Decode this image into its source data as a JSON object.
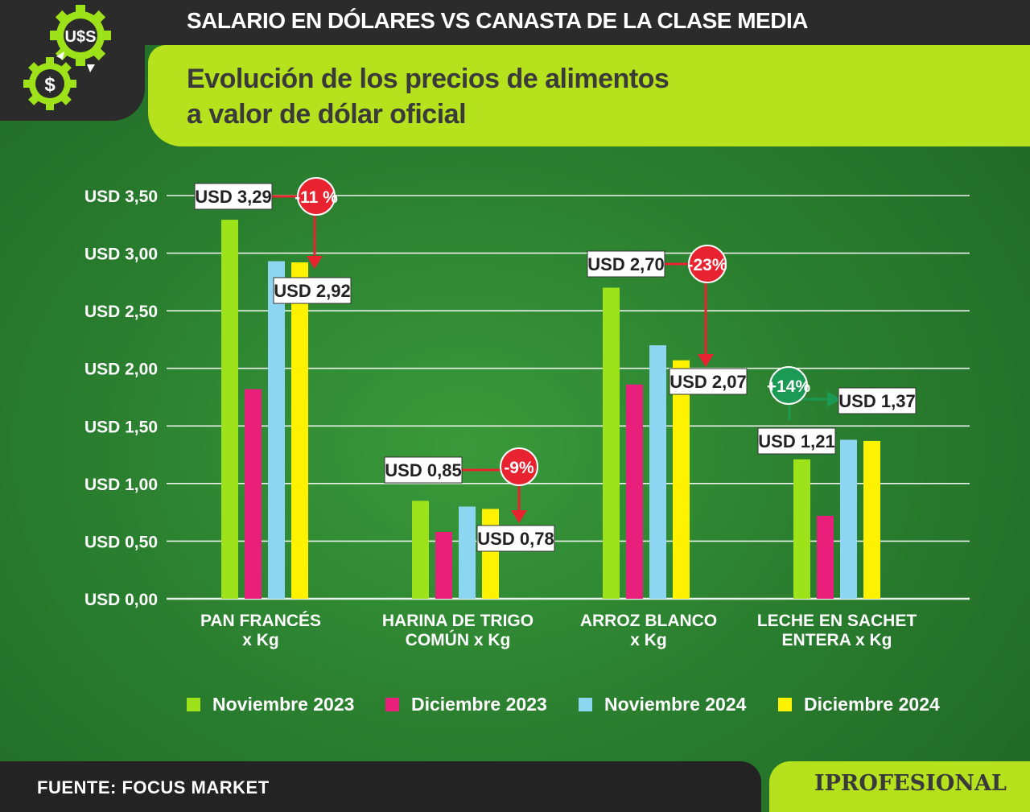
{
  "header": {
    "title": "SALARIO EN DÓLARES VS CANASTA DE LA CLASE MEDIA",
    "subtitle": "Evolución de los precios de alimentos\na valor de dólar oficial",
    "logo_icon": "gears-dollar-icon",
    "logo_text_top": "U$S",
    "logo_text_bottom": "$"
  },
  "colors": {
    "nov2023": "#9ee21a",
    "dic2023": "#e8207c",
    "nov2024": "#8dd6f2",
    "dic2024": "#fff200",
    "down": "#e8232f",
    "up": "#1a9a55",
    "brand_green": "#b6e11d"
  },
  "chart_data": {
    "type": "bar",
    "title": "Evolución de los precios de alimentos a valor de dólar oficial",
    "categories": [
      "PAN FRANCÉS\nx Kg",
      "HARINA DE TRIGO\nCOMÚN x Kg",
      "ARROZ BLANCO\nx Kg",
      "LECHE EN SACHET\nENTERA x Kg"
    ],
    "series": [
      {
        "name": "Noviembre 2023",
        "values": [
          3.29,
          0.85,
          2.7,
          1.21
        ]
      },
      {
        "name": "Diciembre 2023",
        "values": [
          1.82,
          0.58,
          1.86,
          0.72
        ]
      },
      {
        "name": "Noviembre 2024",
        "values": [
          2.93,
          0.8,
          2.2,
          1.38
        ]
      },
      {
        "name": "Diciembre 2024",
        "values": [
          2.92,
          0.78,
          2.07,
          1.37
        ]
      }
    ],
    "ylim": [
      0,
      3.5
    ],
    "yticks": [
      "USD 0,00",
      "USD 0,50",
      "USD 1,00",
      "USD 1,50",
      "USD 2,00",
      "USD 2,50",
      "USD 3,00",
      "USD 3,50"
    ],
    "grid": true,
    "legend_position": "bottom",
    "annotations": [
      {
        "category": 0,
        "from_label": "USD 3,29",
        "from_value": 3.29,
        "to_label": "USD 2,92",
        "to_value": 2.92,
        "change": "-11 %",
        "direction": "down"
      },
      {
        "category": 1,
        "from_label": "USD 0,85",
        "from_value": 0.85,
        "to_label": "USD 0,78",
        "to_value": 0.78,
        "change": "-9%",
        "direction": "down"
      },
      {
        "category": 2,
        "from_label": "USD 2,70",
        "from_value": 2.7,
        "to_label": "USD 2,07",
        "to_value": 2.07,
        "change": "-23%",
        "direction": "down"
      },
      {
        "category": 3,
        "from_label": "USD 1,21",
        "from_value": 1.21,
        "to_label": "USD 1,37",
        "to_value": 1.37,
        "change": "+14%",
        "direction": "up"
      }
    ]
  },
  "footer": {
    "source": "FUENTE: FOCUS MARKET",
    "brand": "IPROFESIONAL"
  }
}
